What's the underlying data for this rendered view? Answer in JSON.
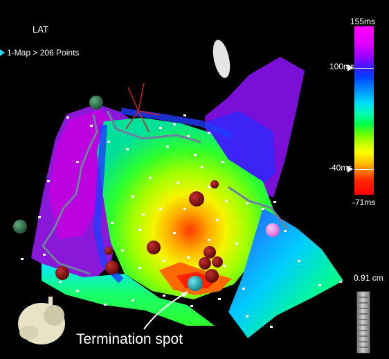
{
  "header": {
    "map_name": "LAT",
    "map_item": "1-Map > 206 Points"
  },
  "color_scale": {
    "max_label": "155ms",
    "upper_label": "100ms",
    "lower_label": "-40ms",
    "min_label": "-71ms",
    "colors": [
      "#ff00ff",
      "#9b00ff",
      "#0040ff",
      "#00d8ff",
      "#00ff4a",
      "#c8ff00",
      "#ffff00",
      "#ff7a00",
      "#ff0000"
    ]
  },
  "ruler": {
    "label": "0.91 cm"
  },
  "annotation": {
    "text": "Termination spot"
  },
  "surface_colors": {
    "magenta": "#c400e0",
    "purple": "#7a10d8",
    "blue": "#1f3cff",
    "cyan": "#00d0ff",
    "green": "#2cff2c",
    "yellow": "#f5f500",
    "orange": "#ff9a00",
    "red": "#ff2000",
    "ablation_point": "#7d0a0a",
    "termination_point": "#18b3c0",
    "landmark_green": "#2e7d4f",
    "landmark_pink": "#f27ce8"
  }
}
